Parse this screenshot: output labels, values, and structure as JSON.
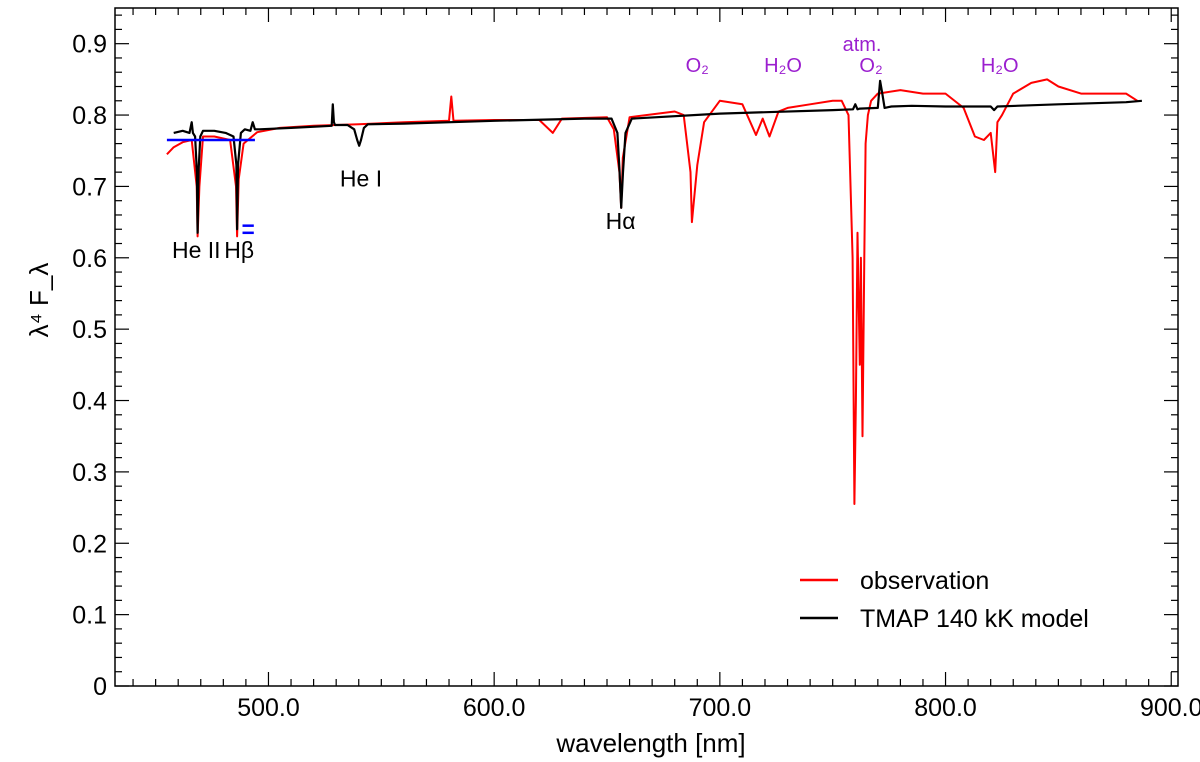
{
  "chart_data": {
    "type": "line",
    "xlabel": "wavelength [nm]",
    "ylabel": "λ⁴ F_λ",
    "xlim": [
      432,
      903
    ],
    "ylim": [
      0,
      0.95
    ],
    "x_ticks": [
      {
        "value": 500,
        "label": "500.0"
      },
      {
        "value": 600,
        "label": "600.0"
      },
      {
        "value": 700,
        "label": "700.0"
      },
      {
        "value": 800,
        "label": "800.0"
      },
      {
        "value": 900,
        "label": "900.0"
      }
    ],
    "y_ticks": [
      {
        "value": 0,
        "label": "0"
      },
      {
        "value": 0.1,
        "label": "0.1"
      },
      {
        "value": 0.2,
        "label": "0.2"
      },
      {
        "value": 0.3,
        "label": "0.3"
      },
      {
        "value": 0.4,
        "label": "0.4"
      },
      {
        "value": 0.5,
        "label": "0.5"
      },
      {
        "value": 0.6,
        "label": "0.6"
      },
      {
        "value": 0.7,
        "label": "0.7"
      },
      {
        "value": 0.8,
        "label": "0.8"
      },
      {
        "value": 0.9,
        "label": "0.9"
      }
    ],
    "grid": false,
    "legend_position": "bottom-right",
    "series": [
      {
        "name": "observation",
        "color": "#ff0000",
        "x": [
          455,
          458,
          462,
          466,
          468.2,
          468.6,
          469.4,
          471,
          476,
          483,
          485.6,
          486.1,
          486.8,
          489,
          495,
          505,
          520,
          540,
          560,
          580,
          581,
          582,
          600,
          620,
          626,
          630,
          650,
          653,
          655.5,
          656.3,
          657,
          660,
          680,
          684,
          687,
          687.6,
          690,
          693,
          700,
          710,
          716,
          719,
          722,
          726,
          730,
          740,
          750,
          754,
          757,
          758.8,
          759.6,
          760.3,
          761,
          762,
          762.5,
          763.2,
          764,
          764.6,
          765.6,
          767,
          770,
          780,
          790,
          800,
          808,
          813,
          817,
          820,
          822,
          823,
          825,
          830,
          838,
          845,
          850,
          860,
          870,
          880,
          885
        ],
        "values": [
          0.745,
          0.755,
          0.762,
          0.765,
          0.7,
          0.63,
          0.7,
          0.77,
          0.77,
          0.765,
          0.7,
          0.63,
          0.71,
          0.76,
          0.776,
          0.782,
          0.785,
          0.787,
          0.79,
          0.792,
          0.826,
          0.792,
          0.793,
          0.793,
          0.775,
          0.795,
          0.797,
          0.78,
          0.72,
          0.67,
          0.74,
          0.797,
          0.805,
          0.8,
          0.72,
          0.65,
          0.73,
          0.79,
          0.82,
          0.815,
          0.772,
          0.795,
          0.77,
          0.805,
          0.81,
          0.815,
          0.82,
          0.82,
          0.8,
          0.6,
          0.255,
          0.4,
          0.635,
          0.45,
          0.6,
          0.35,
          0.6,
          0.76,
          0.8,
          0.82,
          0.83,
          0.835,
          0.83,
          0.83,
          0.81,
          0.77,
          0.765,
          0.775,
          0.72,
          0.79,
          0.8,
          0.83,
          0.845,
          0.85,
          0.84,
          0.83,
          0.83,
          0.83,
          0.82
        ]
      },
      {
        "name": "TMAP 140 kK model",
        "color": "#000000",
        "x": [
          458,
          462,
          465,
          466,
          466.5,
          467.5,
          468.3,
          468.6,
          469,
          469.8,
          471,
          476,
          481,
          484.5,
          485.8,
          486.1,
          486.5,
          487.8,
          489.5,
          492,
          493,
          494,
          496,
          510,
          528,
          528.5,
          529,
          529.5,
          535,
          538,
          539.3,
          540.2,
          541,
          542.3,
          544,
          560,
          600,
          640,
          652,
          654.6,
          655.6,
          656.3,
          657.1,
          658.2,
          661,
          700,
          750,
          759,
          760,
          761,
          762,
          770,
          771,
          772,
          773,
          776,
          785,
          800,
          820,
          821.5,
          823,
          850,
          880,
          887
        ],
        "values": [
          0.775,
          0.778,
          0.775,
          0.79,
          0.775,
          0.77,
          0.72,
          0.635,
          0.72,
          0.77,
          0.778,
          0.778,
          0.775,
          0.77,
          0.73,
          0.64,
          0.73,
          0.775,
          0.78,
          0.778,
          0.79,
          0.78,
          0.78,
          0.782,
          0.785,
          0.815,
          0.79,
          0.786,
          0.786,
          0.78,
          0.765,
          0.757,
          0.765,
          0.782,
          0.787,
          0.788,
          0.792,
          0.795,
          0.795,
          0.775,
          0.72,
          0.67,
          0.72,
          0.775,
          0.795,
          0.802,
          0.807,
          0.808,
          0.815,
          0.808,
          0.809,
          0.81,
          0.848,
          0.83,
          0.81,
          0.812,
          0.813,
          0.812,
          0.812,
          0.807,
          0.812,
          0.815,
          0.818,
          0.82
        ]
      }
    ],
    "markers": [
      {
        "color": "#0000ff",
        "x1": 455,
        "x2": 494,
        "y": 0.765
      },
      {
        "color": "#0000ff",
        "x1": 488.5,
        "x2": 493.5,
        "y": 0.645
      },
      {
        "color": "#0000ff",
        "x1": 488.5,
        "x2": 493.5,
        "y": 0.635
      }
    ],
    "annotations": [
      {
        "text": "He II",
        "x": 468,
        "y": 0.6,
        "color": "#000000"
      },
      {
        "text": "Hβ",
        "x": 487,
        "y": 0.6,
        "color": "#000000"
      },
      {
        "text": "He I",
        "x": 541,
        "y": 0.7,
        "color": "#000000"
      },
      {
        "text": "Hα",
        "x": 656,
        "y": 0.64,
        "color": "#000000"
      },
      {
        "text": "O₂",
        "x": 690,
        "y": 0.86,
        "color": "#9b1fcf"
      },
      {
        "text": "H₂O",
        "x": 728,
        "y": 0.86,
        "color": "#9b1fcf"
      },
      {
        "text": "atm.",
        "x": 763,
        "y": 0.89,
        "color": "#9b1fcf"
      },
      {
        "text": "O₂",
        "x": 767,
        "y": 0.86,
        "color": "#9b1fcf"
      },
      {
        "text": "H₂O",
        "x": 824,
        "y": 0.86,
        "color": "#9b1fcf"
      }
    ]
  }
}
